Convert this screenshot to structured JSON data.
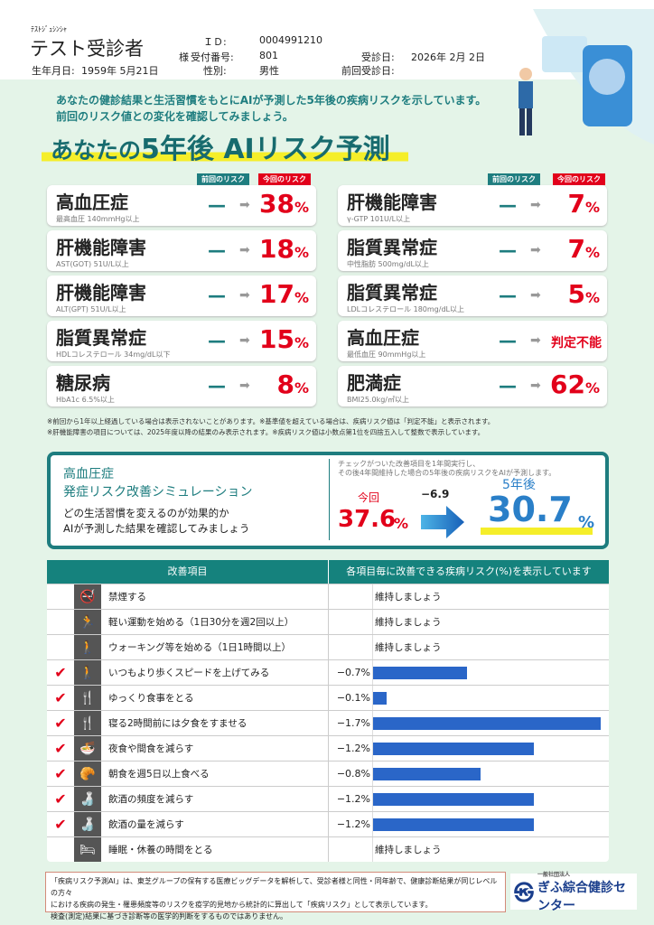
{
  "header": {
    "name_kana": "ﾃｽﾄｼﾞｭｼﾝｼｬ",
    "name": "テスト受診者",
    "honorific": "様",
    "birth_label": "生年月日:",
    "birth_value": "1959年 5月21日",
    "id_label": "ＩＤ:",
    "id_value": "0004991210",
    "reception_label": "受付番号:",
    "reception_value": "801",
    "sex_label": "性別:",
    "sex_value": "男性",
    "exam_date_label": "受診日:",
    "exam_date_value": "2026年 2月 2日",
    "prev_exam_label": "前回受診日:",
    "prev_exam_value": ""
  },
  "intro": {
    "line1": "あなたの健診結果と生活習慣をもとにAIが予測した5年後の疾病リスクを示しています。",
    "line2": "前回のリスク値との変化を確認してみましょう。",
    "title_pre": "あなたの",
    "title_main": "5年後 AIリスク予測"
  },
  "tags": {
    "prev": "前回のリスク",
    "current": "今回のリスク"
  },
  "risks_left": [
    {
      "disease": "高血圧症",
      "criteria": "最高血圧 140mmHg以上",
      "prev": "—",
      "current": "38",
      "unit": "%"
    },
    {
      "disease": "肝機能障害",
      "criteria": "AST(GOT) 51U/L以上",
      "prev": "—",
      "current": "18",
      "unit": "%"
    },
    {
      "disease": "肝機能障害",
      "criteria": "ALT(GPT) 51U/L以上",
      "prev": "—",
      "current": "17",
      "unit": "%"
    },
    {
      "disease": "脂質異常症",
      "criteria": "HDLコレステロール 34mg/dL以下",
      "prev": "—",
      "current": "15",
      "unit": "%"
    },
    {
      "disease": "糖尿病",
      "criteria": "HbA1c 6.5%以上",
      "prev": "—",
      "current": "8",
      "unit": "%"
    }
  ],
  "risks_right": [
    {
      "disease": "肝機能障害",
      "criteria": "γ-GTP 101U/L以上",
      "prev": "—",
      "current": "7",
      "unit": "%"
    },
    {
      "disease": "脂質異常症",
      "criteria": "中性脂肪 500mg/dL以上",
      "prev": "—",
      "current": "7",
      "unit": "%"
    },
    {
      "disease": "脂質異常症",
      "criteria": "LDLコレステロール 180mg/dL以上",
      "prev": "—",
      "current": "5",
      "unit": "%"
    },
    {
      "disease": "高血圧症",
      "criteria": "最低血圧 90mmHg以上",
      "prev": "—",
      "current": "判定不能",
      "unit": ""
    },
    {
      "disease": "肥満症",
      "criteria": "BMI25.0kg/㎡以上",
      "prev": "—",
      "current": "62",
      "unit": "%"
    }
  ],
  "notes": {
    "line1": "※前回から1年以上経過している場合は表示されないことがあります。※基準値を超えている場合は、疾病リスク値は「判定不能」と表示されます。",
    "line2": "※肝機能障害の項目については、2025年度以降の結果のみ表示されます。※疾病リスク値は小数点第1位を四捨五入して整数で表示しています。"
  },
  "simulation": {
    "title1": "高血圧症",
    "title2": "発症リスク改善シミュレーション",
    "desc1": "どの生活習慣を変えるのが効果的か",
    "desc2": "AIが予測した結果を確認してみましょう",
    "explain1": "チェックがついた改善項目を1年間実行し、",
    "explain2": "その後4年間維持した場合の5年後の疾病リスクをAIが予測します。",
    "current_label": "今回",
    "current_value": "37.6",
    "diff": "−6.9",
    "future_label": "5年後",
    "future_value": "30.7",
    "unit": "%"
  },
  "table": {
    "header_item": "改善項目",
    "header_effect": "各項目毎に改善できる疾病リスク(%)を表示しています",
    "maintain": "維持しましょう",
    "max_reduction": 1.7,
    "rows": [
      {
        "checked": false,
        "icon": "no-smoking-icon",
        "glyph": "🚭",
        "label": "禁煙する",
        "value": null,
        "text": "維持しましょう"
      },
      {
        "checked": false,
        "icon": "running-icon",
        "glyph": "🏃",
        "label": "軽い運動を始める（1日30分を週2回以上）",
        "value": null,
        "text": "維持しましょう"
      },
      {
        "checked": false,
        "icon": "walking-icon",
        "glyph": "🚶",
        "label": "ウォーキング等を始める（1日1時間以上）",
        "value": null,
        "text": "維持しましょう"
      },
      {
        "checked": true,
        "icon": "walking-icon",
        "glyph": "🚶",
        "label": "いつもより歩くスピードを上げてみる",
        "value": -0.7,
        "text": "−0.7%"
      },
      {
        "checked": true,
        "icon": "meal-clock-icon",
        "glyph": "🍴",
        "label": "ゆっくり食事をとる",
        "value": -0.1,
        "text": "−0.1%"
      },
      {
        "checked": true,
        "icon": "meal-clock-icon",
        "glyph": "🍴",
        "label": "寝る2時間前には夕食をすませる",
        "value": -1.7,
        "text": "−1.7%"
      },
      {
        "checked": true,
        "icon": "noodle-bowl-icon",
        "glyph": "🍜",
        "label": "夜食や間食を減らす",
        "value": -1.2,
        "text": "−1.2%"
      },
      {
        "checked": true,
        "icon": "croissant-icon",
        "glyph": "🥐",
        "label": "朝食を週5日以上食べる",
        "value": -0.8,
        "text": "−0.8%"
      },
      {
        "checked": true,
        "icon": "sake-bottle-icon",
        "glyph": "🍶",
        "label": "飲酒の頻度を減らす",
        "value": -1.2,
        "text": "−1.2%"
      },
      {
        "checked": true,
        "icon": "sake-bottle-icon",
        "glyph": "🍶",
        "label": "飲酒の量を減らす",
        "value": -1.2,
        "text": "−1.2%"
      },
      {
        "checked": false,
        "icon": "bed-icon",
        "glyph": "🛏",
        "label": "睡眠・休養の時間をとる",
        "value": null,
        "text": "維持しましょう"
      }
    ]
  },
  "footer": {
    "line1": "「疾病リスク予測AI」は、東芝グループの保有する医療ビッグデータを解析して、受診者様と同性・同年齢で、健康診断結果が同じレベルの方々",
    "line2": "における疾病の発生・罹患頻度等のリスクを疫学的見地から統計的に算出して「疾病リスク」として表示しています。",
    "line3": "検査(測定)結果に基づき診断等の医学的判断をするものではありません。",
    "logo_sub": "一般社団法人",
    "logo": "ぎふ綜合健診センター"
  },
  "colors": {
    "teal": "#1e7d7f",
    "red": "#e2001a",
    "blue": "#2a66c8",
    "bg": "#e4f4e8"
  }
}
